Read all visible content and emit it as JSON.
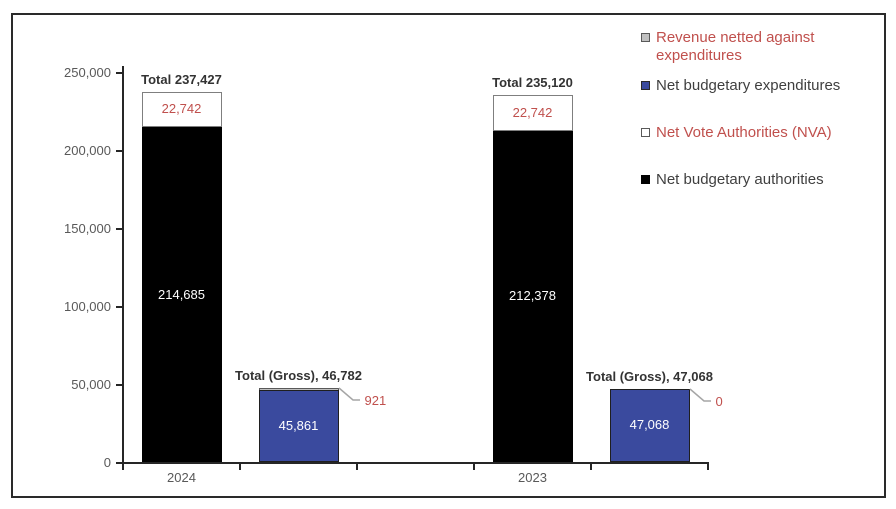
{
  "colors": {
    "net_budgetary_authorities": "#000000",
    "net_budgetary_expenditures": "#3a4a9e",
    "net_vote_authorities_fill": "#ffffff",
    "revenue_netted_fill": "#c0c0c0",
    "red_text": "#c0504d",
    "dark_text": "#333333",
    "axis_text": "#595959",
    "leader_line": "#a6a6a6"
  },
  "chart_data": {
    "type": "bar",
    "title": "",
    "y_axis": {
      "min": 0,
      "max": 250000,
      "tick_step": 50000,
      "tick_labels": [
        "0",
        "50,000",
        "100,000",
        "150,000",
        "200,000",
        "250,000"
      ]
    },
    "x_axis": {
      "categories": [
        "2024",
        "2023"
      ]
    },
    "legend": [
      {
        "label": "Revenue netted against expenditures",
        "marker": "gray-outline-square",
        "text_color": "red"
      },
      {
        "label": "Net budgetary expenditures",
        "marker": "blue-square",
        "text_color": "dark"
      },
      {
        "label": "Net Vote Authorities (NVA)",
        "marker": "white-outline-square",
        "text_color": "red"
      },
      {
        "label": "Net budgetary authorities",
        "marker": "black-square",
        "text_color": "dark"
      }
    ],
    "groups": [
      {
        "year": "2024",
        "authorities": {
          "total_label": "Total 237,427",
          "total": 237427,
          "net_budgetary_authorities": 214685,
          "net_label": "214,685",
          "net_vote_authorities": 22742,
          "nva_label": "22,742"
        },
        "expenditures": {
          "total_label": "Total (Gross), 46,782",
          "total_gross": 46782,
          "net_budgetary_expenditures": 45861,
          "net_label": "45,861",
          "revenue_netted": 921,
          "revenue_label": "921"
        }
      },
      {
        "year": "2023",
        "authorities": {
          "total_label": "Total 235,120",
          "total": 235120,
          "net_budgetary_authorities": 212378,
          "net_label": "212,378",
          "net_vote_authorities": 22742,
          "nva_label": "22,742"
        },
        "expenditures": {
          "total_label": "Total (Gross), 47,068",
          "total_gross": 47068,
          "net_budgetary_expenditures": 47068,
          "net_label": "47,068",
          "revenue_netted": 0,
          "revenue_label": "0"
        }
      }
    ]
  }
}
